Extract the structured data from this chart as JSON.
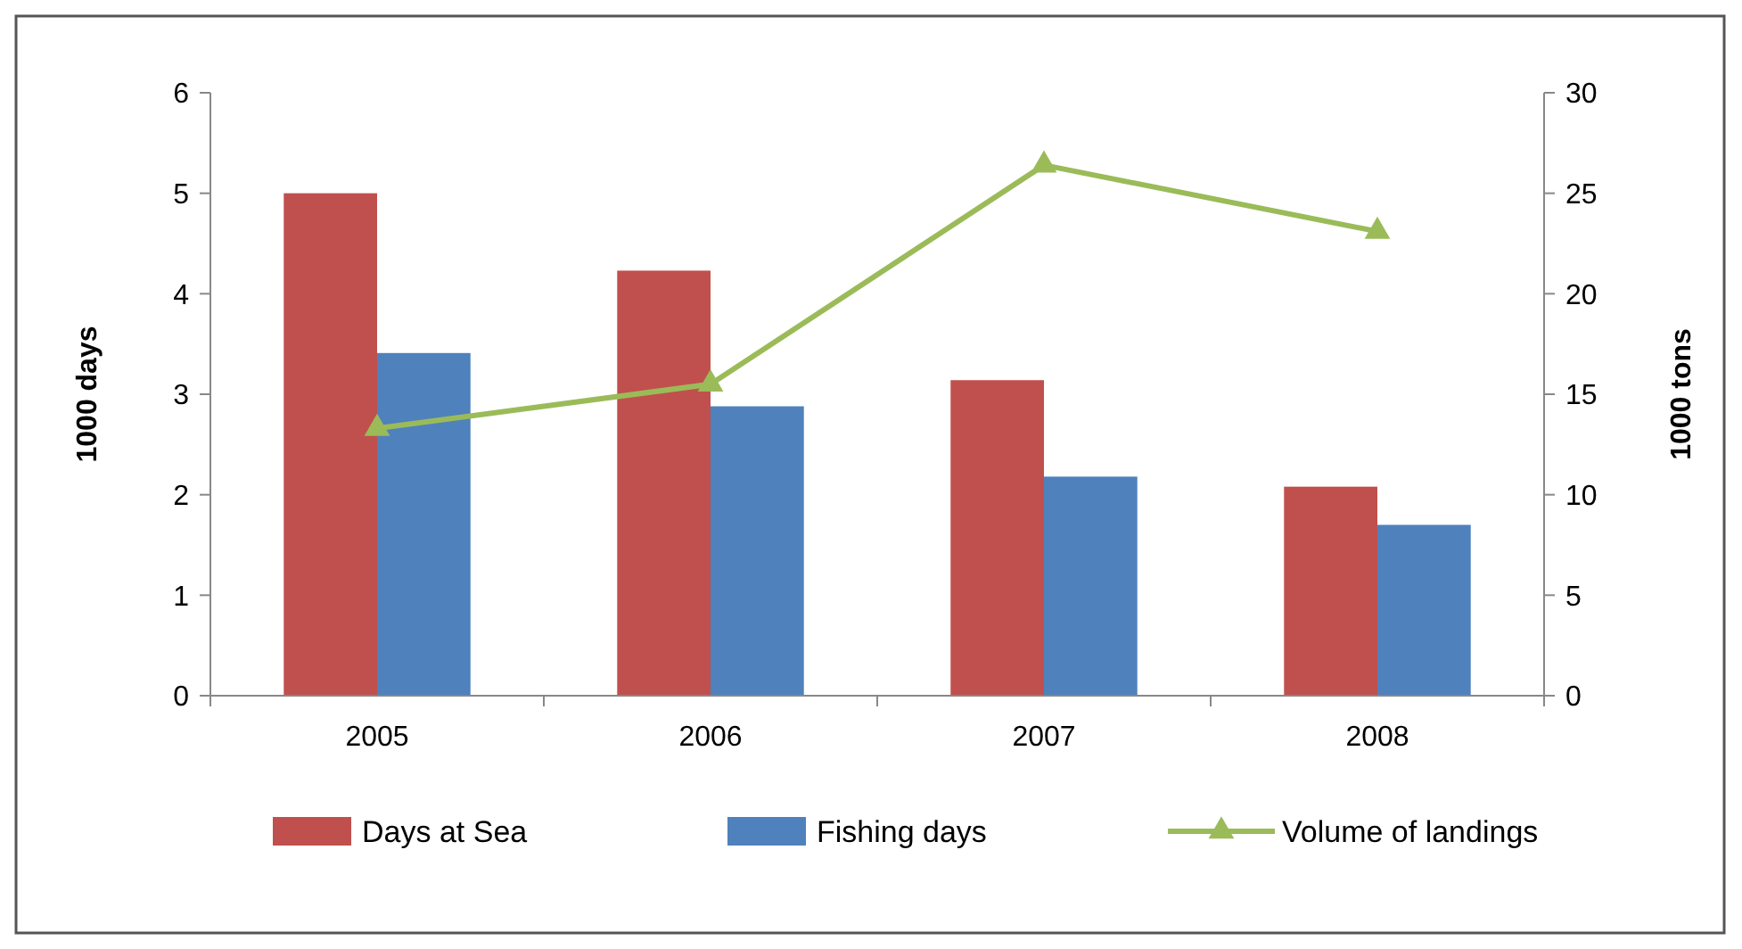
{
  "chart_data": {
    "type": "bar",
    "ylabel": "1000 days",
    "y2label": "1000 tons",
    "categories": [
      "2005",
      "2006",
      "2007",
      "2008"
    ],
    "series": [
      {
        "name": "Days at Sea",
        "color": "#c0504d",
        "values": [
          5.0,
          4.23,
          3.14,
          2.08
        ]
      },
      {
        "name": "Fishing days",
        "color": "#4f81bd",
        "values": [
          3.41,
          2.88,
          2.18,
          1.7
        ]
      },
      {
        "name": "Volume of landings",
        "type": "line",
        "axis": "y2",
        "color": "#9bbb59",
        "marker": "triangle",
        "values": [
          13.3,
          15.5,
          26.4,
          23.1
        ]
      }
    ],
    "ylim": [
      0,
      6
    ],
    "yticks": [
      0,
      1,
      2,
      3,
      4,
      5,
      6
    ],
    "y2lim": [
      0,
      30
    ],
    "y2ticks": [
      0,
      5,
      10,
      15,
      20,
      25,
      30
    ],
    "grid": false,
    "legend": "bottom"
  }
}
